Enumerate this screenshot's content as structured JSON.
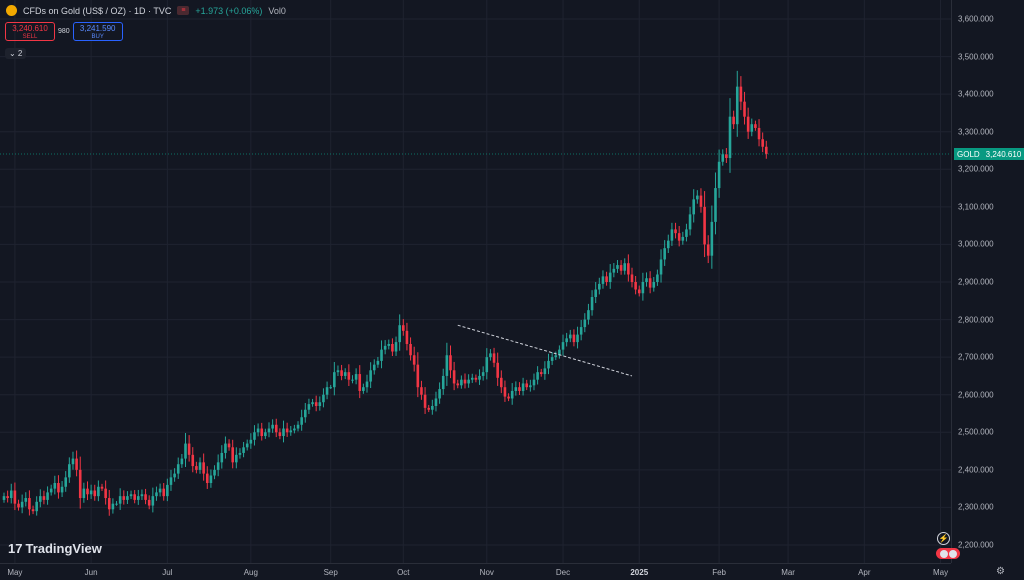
{
  "symbol": {
    "title": "CFDs on Gold (US$ / OZ) · 1D · TVC",
    "change": "+1.973 (+0.06%)",
    "volume": "Vol0",
    "dot_label": "≡",
    "icon": "gold-coin-icon"
  },
  "trade": {
    "sell_price": "3,240.610",
    "sell_label": "SELL",
    "spread": "980",
    "buy_price": "3,241.590",
    "buy_label": "BUY"
  },
  "indicators_toggle": "⌄ 2",
  "price_tag": {
    "name": "GOLD",
    "value": "3,240.610"
  },
  "branding": {
    "logo_text": "TradingView",
    "logo_mark": "17"
  },
  "colors": {
    "up": "#26a69a",
    "down": "#f23645",
    "background": "#131722"
  },
  "chart_data": {
    "type": "candlestick",
    "y_ticks": [
      "3,600.000",
      "3,500.000",
      "3,400.000",
      "3,300.000",
      "3,200.000",
      "3,100.000",
      "3,000.000",
      "2,900.000",
      "2,800.000",
      "2,700.000",
      "2,600.000",
      "2,500.000",
      "2,400.000",
      "2,300.000",
      "2,200.000"
    ],
    "x_ticks": [
      {
        "label": "May",
        "idx": 3
      },
      {
        "label": "Jun",
        "idx": 24
      },
      {
        "label": "Jul",
        "idx": 45
      },
      {
        "label": "Aug",
        "idx": 68
      },
      {
        "label": "Sep",
        "idx": 90
      },
      {
        "label": "Oct",
        "idx": 110
      },
      {
        "label": "Nov",
        "idx": 133
      },
      {
        "label": "Dec",
        "idx": 154
      },
      {
        "label": "2025",
        "idx": 175,
        "bold": true
      },
      {
        "label": "Feb",
        "idx": 197
      },
      {
        "label": "Mar",
        "idx": 216
      },
      {
        "label": "Apr",
        "idx": 237
      },
      {
        "label": "May",
        "idx": 258
      }
    ],
    "ylim": [
      2200,
      3600
    ],
    "last_price": 3240.61,
    "closes": [
      2330,
      2325,
      2345,
      2310,
      2300,
      2315,
      2325,
      2295,
      2290,
      2315,
      2330,
      2320,
      2340,
      2350,
      2365,
      2340,
      2355,
      2380,
      2415,
      2430,
      2400,
      2325,
      2350,
      2335,
      2345,
      2330,
      2355,
      2350,
      2325,
      2295,
      2310,
      2310,
      2330,
      2320,
      2330,
      2335,
      2320,
      2330,
      2335,
      2320,
      2305,
      2330,
      2340,
      2350,
      2330,
      2360,
      2380,
      2390,
      2415,
      2430,
      2470,
      2440,
      2410,
      2400,
      2420,
      2390,
      2365,
      2385,
      2400,
      2420,
      2445,
      2470,
      2460,
      2420,
      2440,
      2445,
      2460,
      2470,
      2480,
      2500,
      2510,
      2490,
      2500,
      2510,
      2520,
      2500,
      2490,
      2510,
      2500,
      2505,
      2510,
      2520,
      2540,
      2560,
      2575,
      2580,
      2570,
      2580,
      2600,
      2620,
      2620,
      2660,
      2665,
      2650,
      2660,
      2640,
      2640,
      2655,
      2610,
      2620,
      2635,
      2665,
      2680,
      2690,
      2720,
      2730,
      2735,
      2715,
      2740,
      2785,
      2770,
      2735,
      2705,
      2680,
      2620,
      2600,
      2565,
      2560,
      2570,
      2590,
      2615,
      2650,
      2705,
      2665,
      2630,
      2625,
      2640,
      2630,
      2640,
      2645,
      2640,
      2650,
      2660,
      2700,
      2710,
      2685,
      2645,
      2620,
      2595,
      2590,
      2610,
      2620,
      2610,
      2630,
      2620,
      2625,
      2640,
      2660,
      2655,
      2670,
      2690,
      2700,
      2705,
      2720,
      2740,
      2750,
      2760,
      2740,
      2760,
      2780,
      2800,
      2825,
      2860,
      2880,
      2895,
      2915,
      2900,
      2925,
      2935,
      2945,
      2930,
      2950,
      2920,
      2900,
      2880,
      2870,
      2900,
      2910,
      2885,
      2900,
      2920,
      2960,
      2990,
      3010,
      3040,
      3030,
      3010,
      3020,
      3040,
      3080,
      3120,
      3130,
      3100,
      3000,
      2970,
      3060,
      3150,
      3220,
      3240,
      3230,
      3340,
      3320,
      3420,
      3380,
      3340,
      3300,
      3320,
      3310,
      3280,
      3260,
      3240.61
    ],
    "trendline": [
      {
        "idx": 125,
        "price": 2785
      },
      {
        "idx": 173,
        "price": 2650
      }
    ]
  }
}
